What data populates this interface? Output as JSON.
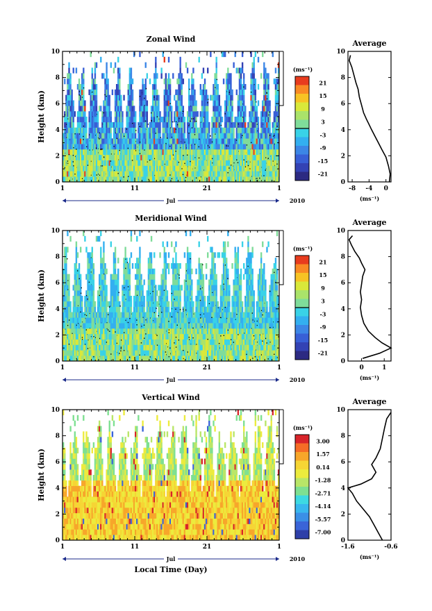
{
  "chart_data": [
    {
      "type": "heatmap",
      "title": "Zonal Wind",
      "ylabel": "Height (km)",
      "ylim": [
        0,
        10
      ],
      "yticks": [
        "0",
        "2",
        "4",
        "6",
        "8",
        "10"
      ],
      "xticks": [
        "1",
        "11",
        "21",
        "1"
      ],
      "month": "Jul",
      "year": "2010",
      "colorbar": {
        "unit": "(ms⁻¹)",
        "labels": [
          "21",
          "15",
          "9",
          "3",
          "-3",
          "-9",
          "-15",
          "-21"
        ]
      },
      "average": {
        "title": "Average",
        "xlabel": "(ms⁻¹)",
        "xticks": [
          "-8",
          "-4",
          "0"
        ],
        "xlim": [
          -9,
          1.2
        ],
        "yticks": [
          "0",
          "2",
          "4",
          "6",
          "8",
          "10"
        ],
        "profile": [
          [
            0.8,
            0.0
          ],
          [
            1.0,
            0.6
          ],
          [
            0.6,
            1.2
          ],
          [
            0.0,
            1.9
          ],
          [
            -1.0,
            2.5
          ],
          [
            -1.8,
            3.0
          ],
          [
            -2.6,
            3.5
          ],
          [
            -3.4,
            4.0
          ],
          [
            -4.0,
            4.4
          ],
          [
            -4.6,
            4.8
          ],
          [
            -5.3,
            5.3
          ],
          [
            -5.8,
            5.9
          ],
          [
            -6.3,
            6.5
          ],
          [
            -6.6,
            7.1
          ],
          [
            -7.1,
            7.6
          ],
          [
            -7.6,
            8.2
          ],
          [
            -8.1,
            8.8
          ],
          [
            -8.7,
            9.3
          ],
          [
            -8.4,
            9.7
          ]
        ]
      }
    },
    {
      "type": "heatmap",
      "title": "Meridional Wind",
      "ylabel": "Height (km)",
      "ylim": [
        0,
        10
      ],
      "yticks": [
        "0",
        "2",
        "4",
        "6",
        "8",
        "10"
      ],
      "xticks": [
        "1",
        "11",
        "21",
        "1"
      ],
      "month": "Jul",
      "year": "2010",
      "colorbar": {
        "unit": "(ms⁻¹)",
        "labels": [
          "21",
          "15",
          "9",
          "3",
          "-3",
          "-9",
          "-15",
          "-21"
        ]
      },
      "average": {
        "title": "Average",
        "xlabel": "(ms⁻¹)",
        "xticks": [
          "0",
          "1"
        ],
        "xlim": [
          -0.6,
          1.3
        ],
        "yticks": [
          "0",
          "2",
          "4",
          "6",
          "8",
          "10"
        ],
        "profile": [
          [
            0.05,
            0.2
          ],
          [
            0.8,
            0.6
          ],
          [
            1.3,
            1.0
          ],
          [
            0.9,
            1.4
          ],
          [
            0.6,
            1.8
          ],
          [
            0.3,
            2.3
          ],
          [
            0.1,
            2.9
          ],
          [
            0.0,
            3.5
          ],
          [
            -0.05,
            4.1
          ],
          [
            0.0,
            4.7
          ],
          [
            -0.05,
            5.3
          ],
          [
            0.0,
            5.9
          ],
          [
            0.05,
            6.5
          ],
          [
            0.15,
            7.0
          ],
          [
            0.0,
            7.5
          ],
          [
            -0.1,
            7.9
          ],
          [
            -0.3,
            8.4
          ],
          [
            -0.45,
            8.9
          ],
          [
            -0.55,
            9.3
          ],
          [
            -0.4,
            9.6
          ]
        ]
      }
    },
    {
      "type": "heatmap",
      "title": "Vertical Wind",
      "ylabel": "Height (km)",
      "xlabel": "Local Time (Day)",
      "ylim": [
        0,
        10
      ],
      "yticks": [
        "0",
        "2",
        "4",
        "6",
        "8",
        "10"
      ],
      "xticks": [
        "1",
        "11",
        "21",
        "1"
      ],
      "month": "Jul",
      "year": "2010",
      "colorbar": {
        "unit": "(ms⁻¹)",
        "labels": [
          "3.00",
          "1.57",
          "0.14",
          "-1.28",
          "-2.71",
          "-4.14",
          "-5.57",
          "-7.00"
        ]
      },
      "average": {
        "title": "Average",
        "xlabel": "(ms⁻¹)",
        "xticks": [
          "-1.6",
          "-0.6"
        ],
        "xlim": [
          -1.6,
          -0.6
        ],
        "yticks": [
          "0",
          "2",
          "4",
          "6",
          "8",
          "10"
        ],
        "profile": [
          [
            -0.8,
            0.0
          ],
          [
            -0.9,
            0.6
          ],
          [
            -1.0,
            1.2
          ],
          [
            -1.1,
            1.8
          ],
          [
            -1.25,
            2.4
          ],
          [
            -1.4,
            3.0
          ],
          [
            -1.5,
            3.6
          ],
          [
            -1.6,
            4.0
          ],
          [
            -1.3,
            4.3
          ],
          [
            -1.05,
            4.7
          ],
          [
            -0.95,
            5.2
          ],
          [
            -1.05,
            5.8
          ],
          [
            -0.95,
            6.3
          ],
          [
            -0.85,
            7.0
          ],
          [
            -0.8,
            7.8
          ],
          [
            -0.75,
            8.6
          ],
          [
            -0.7,
            9.3
          ],
          [
            -0.6,
            9.8
          ]
        ]
      }
    }
  ]
}
